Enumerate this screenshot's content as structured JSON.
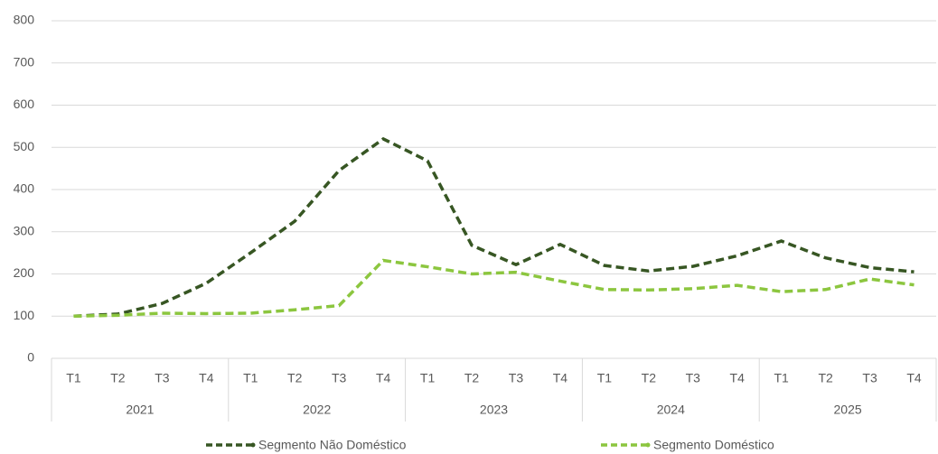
{
  "chart_data": {
    "type": "line",
    "categories": [
      "T1",
      "T2",
      "T3",
      "T4",
      "T1",
      "T2",
      "T3",
      "T4",
      "T1",
      "T2",
      "T3",
      "T4",
      "T1",
      "T2",
      "T3",
      "T4",
      "T1",
      "T2",
      "T3",
      "T4"
    ],
    "groups": [
      "2021",
      "2022",
      "2023",
      "2024",
      "2025"
    ],
    "series": [
      {
        "name": "Segmento Não Doméstico",
        "color": "#375623",
        "values": [
          100,
          105,
          130,
          178,
          250,
          325,
          445,
          520,
          468,
          268,
          222,
          270,
          220,
          207,
          218,
          243,
          278,
          238,
          215,
          205
        ]
      },
      {
        "name": "Segmento Doméstico",
        "color": "#8cc63f",
        "values": [
          100,
          102,
          107,
          106,
          107,
          115,
          125,
          232,
          217,
          200,
          204,
          183,
          163,
          162,
          165,
          173,
          158,
          163,
          188,
          174
        ]
      }
    ],
    "ylim": [
      0,
      800
    ],
    "yticks": [
      0,
      100,
      200,
      300,
      400,
      500,
      600,
      700,
      800
    ],
    "grid": true,
    "legend": "bottom"
  }
}
